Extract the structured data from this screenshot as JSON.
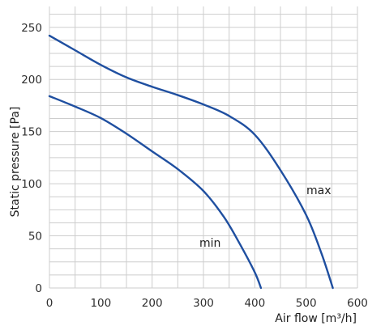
{
  "chart_data": {
    "type": "line",
    "title": "",
    "xlabel": "Air flow [m³/h]",
    "ylabel": "Static pressure [Pa]",
    "xlim": [
      0,
      600
    ],
    "ylim": [
      0,
      270
    ],
    "xticks": [
      0,
      100,
      200,
      300,
      400,
      500,
      600
    ],
    "yticks": [
      0,
      50,
      100,
      150,
      200,
      250
    ],
    "grid": true,
    "legend": "none",
    "line_color": "#1f4fa0",
    "grid_color": "#cdcdcd",
    "series": [
      {
        "name": "max",
        "x": [
          0,
          50,
          100,
          150,
          200,
          250,
          300,
          350,
          400,
          450,
          500,
          530,
          552
        ],
        "y": [
          242,
          228,
          214,
          202,
          193,
          185,
          176,
          165,
          147,
          113,
          70,
          33,
          0
        ]
      },
      {
        "name": "min",
        "x": [
          0,
          50,
          100,
          150,
          200,
          250,
          300,
          340,
          370,
          400,
          412
        ],
        "y": [
          184,
          174,
          163,
          148,
          131,
          114,
          93,
          68,
          43,
          15,
          0
        ]
      }
    ]
  }
}
